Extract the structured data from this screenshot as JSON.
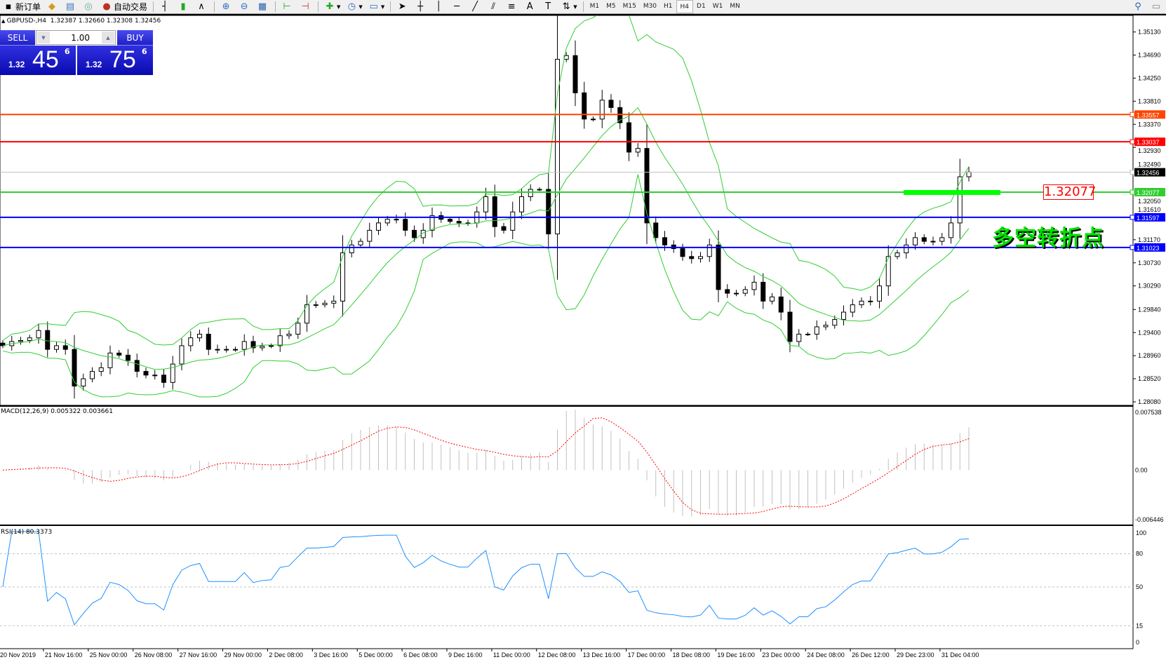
{
  "toolbar": {
    "new_order": "新订单",
    "auto_trading": "自动交易",
    "timeframes": [
      "M1",
      "M5",
      "M15",
      "M30",
      "H1",
      "H4",
      "D1",
      "W1",
      "MN"
    ],
    "active_timeframe": "H4"
  },
  "chart_header": {
    "symbol": "GBPUSD-,H4",
    "ohlc": "1.32387 1.32660 1.32308 1.32456"
  },
  "trade_panel": {
    "sell_label": "SELL",
    "buy_label": "BUY",
    "volume": "1.00",
    "sell_price": {
      "prefix": "1.32",
      "big": "45",
      "sup": "6"
    },
    "buy_price": {
      "prefix": "1.32",
      "big": "75",
      "sup": "6"
    }
  },
  "annotation": {
    "price_label": "1.32077",
    "text": "多空转折点",
    "color_text": "#00e000",
    "color_label": "#ff0000"
  },
  "chart_data": {
    "type": "candlestick",
    "price_axis_ticks": [
      "1.35130",
      "1.34690",
      "1.34250",
      "1.33810",
      "1.33370",
      "1.32930",
      "1.32490",
      "1.32050",
      "1.31610",
      "1.31170",
      "1.30730",
      "1.30290",
      "1.29840",
      "1.29400",
      "1.28960",
      "1.28520",
      "1.28080"
    ],
    "price_range": [
      1.2808,
      1.3513
    ],
    "current_price": 1.32456,
    "horizontal_lines": [
      {
        "price": "1.33557",
        "color": "#ff4500"
      },
      {
        "price": "1.33037",
        "color": "#ff0000"
      },
      {
        "price": "1.32456",
        "color": "#c0c0c0",
        "label_bg": "#000000"
      },
      {
        "price": "1.32077",
        "color": "#32cd32"
      },
      {
        "price": "1.31597",
        "color": "#0000ff"
      },
      {
        "price": "1.31023",
        "color": "#0000ff"
      }
    ],
    "closes": [
      1.2915,
      1.2923,
      1.2925,
      1.293,
      1.2944,
      1.2908,
      1.2915,
      1.2908,
      1.2838,
      1.2852,
      1.2866,
      1.2873,
      1.2901,
      1.2897,
      1.2887,
      1.2866,
      1.2859,
      1.2859,
      1.2845,
      1.288,
      1.2915,
      1.293,
      1.2937,
      1.2908,
      1.2908,
      1.2908,
      1.2908,
      1.2923,
      1.2911,
      1.2914,
      1.2915,
      1.2934,
      1.2937,
      1.2958,
      1.2993,
      1.2993,
      1.2996,
      1.3,
      1.3092,
      1.3107,
      1.3114,
      1.3135,
      1.3149,
      1.3156,
      1.3156,
      1.3135,
      1.3121,
      1.3135,
      1.3163,
      1.3156,
      1.3152,
      1.3149,
      1.3149,
      1.317,
      1.3199,
      1.3142,
      1.3135,
      1.317,
      1.3199,
      1.3213,
      1.3213,
      1.3128,
      1.3461,
      1.3468,
      1.3397,
      1.3347,
      1.3347,
      1.3383,
      1.3369,
      1.334,
      1.3284,
      1.3291,
      1.3149,
      1.3121,
      1.3107,
      1.31,
      1.3085,
      1.3081,
      1.3085,
      1.3107,
      1.3022,
      1.3015,
      1.3015,
      1.3022,
      1.3036,
      1.3,
      1.3008,
      1.2979,
      1.2923,
      1.2937,
      1.2937,
      1.2951,
      1.2954,
      1.2965,
      1.2979,
      1.2993,
      1.3,
      1.3,
      1.3029,
      1.3085,
      1.3092,
      1.3107,
      1.3121,
      1.3114,
      1.3114,
      1.3121,
      1.3149,
      1.3237,
      1.3246
    ],
    "time_labels": [
      "20 Nov 2019",
      "21 Nov 16:00",
      "25 Nov 00:00",
      "26 Nov 08:00",
      "27 Nov 16:00",
      "29 Nov 00:00",
      "2 Dec 08:00",
      "3 Dec 16:00",
      "5 Dec 00:00",
      "6 Dec 08:00",
      "9 Dec 16:00",
      "11 Dec 00:00",
      "12 Dec 08:00",
      "13 Dec 16:00",
      "17 Dec 00:00",
      "18 Dec 08:00",
      "19 Dec 16:00",
      "23 Dec 00:00",
      "24 Dec 08:00",
      "26 Dec 12:00",
      "29 Dec 23:00",
      "31 Dec 04:00"
    ],
    "indicators": {
      "bollinger": {
        "color": "#32cd32"
      },
      "macd": {
        "title": "MACD(12,26,9) 0.005322 0.003661",
        "ticks": [
          "0.007538",
          "0.00",
          "-0.006446"
        ],
        "range": [
          -0.006446,
          0.007538
        ],
        "hist_color": "#c0c0c0",
        "signal_color": "#ff0000"
      },
      "rsi": {
        "title": "RSI(14) 80.3373",
        "ticks": [
          "100",
          "80",
          "50",
          "15",
          "0"
        ],
        "levels": [
          80,
          50,
          15
        ],
        "color": "#1e90ff"
      }
    }
  }
}
